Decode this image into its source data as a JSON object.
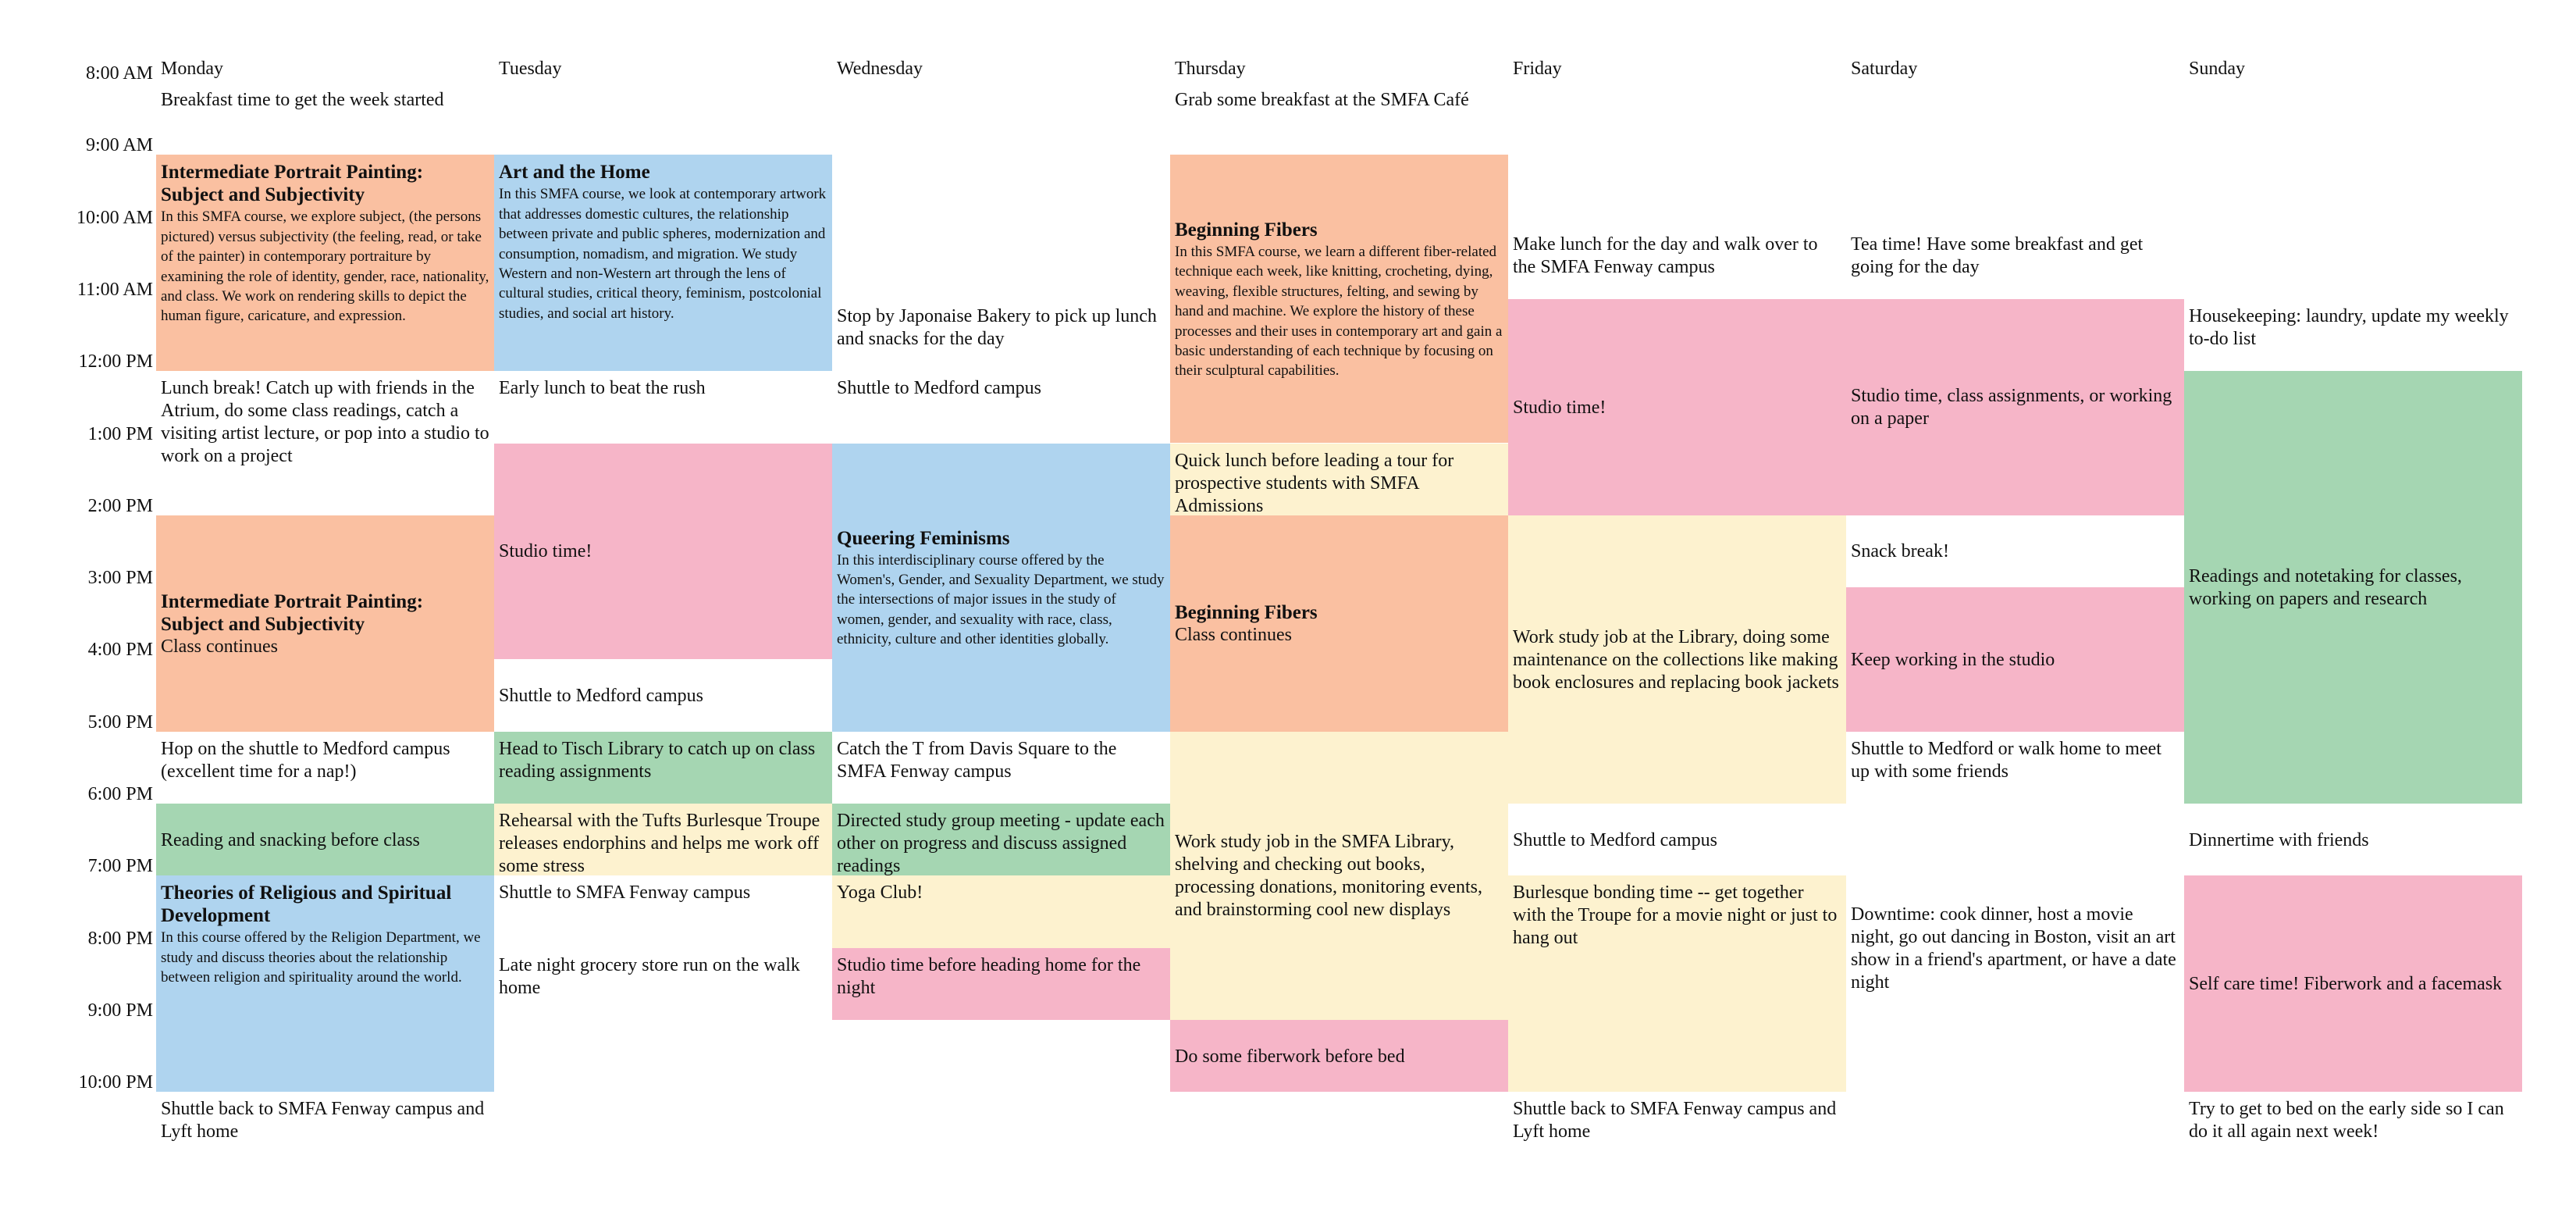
{
  "colors": {
    "orange": "#fac0a1",
    "blue": "#afd4ef",
    "pink": "#f6b5c8",
    "green": "#a5d6b2",
    "yellow": "#fdf2cf",
    "white": "#ffffff"
  },
  "days": [
    "Monday",
    "Tuesday",
    "Wednesday",
    "Thursday",
    "Friday",
    "Saturday",
    "Sunday"
  ],
  "times": [
    "8:00 AM",
    "9:00 AM",
    "10:00 AM",
    "11:00 AM",
    "12:00 PM",
    "1:00 PM",
    "2:00 PM",
    "3:00 PM",
    "4:00 PM",
    "5:00 PM",
    "6:00 PM",
    "7:00 PM",
    "8:00 PM",
    "9:00 PM",
    "10:00 PM"
  ],
  "events": [
    {
      "day": 0,
      "start": 8.0,
      "end": 9.0,
      "color": "white",
      "text": "Breakfast time to get the week started"
    },
    {
      "day": 0,
      "start": 9.0,
      "end": 12.0,
      "color": "orange",
      "title": "Intermediate Portrait Painting: Subject and Subjectivity",
      "desc": "In this SMFA course, we explore subject, (the persons pictured) versus subjectivity (the feeling, read, or take of the painter) in contemporary portraiture by examining the role of identity, gender, race, nationality, and class. We work on rendering skills to depict the human  figure, caricature, and expression."
    },
    {
      "day": 0,
      "start": 12.0,
      "end": 14.0,
      "color": "white",
      "text": "Lunch break! Catch up with friends in the Atrium, do some class readings, catch a visiting artist lecture, or pop into a studio to work on a project"
    },
    {
      "day": 0,
      "start": 14.0,
      "end": 17.0,
      "color": "orange",
      "title": "Intermediate Portrait Painting: Subject and Subjectivity",
      "text": "Class continues",
      "vcenter": true
    },
    {
      "day": 0,
      "start": 17.0,
      "end": 18.0,
      "color": "white",
      "text": "Hop on the shuttle to Medford campus (excellent time for a nap!)"
    },
    {
      "day": 0,
      "start": 18.0,
      "end": 19.0,
      "color": "green",
      "text": "Reading and snacking before class",
      "vcenter": true
    },
    {
      "day": 0,
      "start": 19.0,
      "end": 22.0,
      "color": "blue",
      "title": "Theories of Religious and Spiritual Development",
      "desc": "In this course offered by the Religion Department, we study and discuss theories about the relationship between religion and spirituality around the world."
    },
    {
      "day": 0,
      "start": 22.0,
      "end": 23.0,
      "color": "white",
      "text": "Shuttle back to SMFA Fenway campus and Lyft home"
    },
    {
      "day": 1,
      "start": 9.0,
      "end": 12.0,
      "color": "blue",
      "title": "Art and the Home",
      "desc": "In this SMFA course, we look at contemporary artwork that addresses domestic cultures, the relationship between private and public spheres, modernization and consumption,  nomadism, and migration. We study Western and non-Western art through the lens of cultural studies, critical theory, feminism, postcolonial studies, and social art history."
    },
    {
      "day": 1,
      "start": 12.0,
      "end": 13.0,
      "color": "white",
      "text": "Early lunch to beat the rush"
    },
    {
      "day": 1,
      "start": 13.0,
      "end": 16.0,
      "color": "pink",
      "text": "Studio time!",
      "vcenter": true
    },
    {
      "day": 1,
      "start": 16.0,
      "end": 17.0,
      "color": "white",
      "text": "Shuttle to Medford campus",
      "vcenter": true
    },
    {
      "day": 1,
      "start": 17.0,
      "end": 18.0,
      "color": "green",
      "text": "Head to Tisch Library to catch up on class reading assignments"
    },
    {
      "day": 1,
      "start": 18.0,
      "end": 19.0,
      "color": "yellow",
      "text": "Rehearsal with the Tufts Burlesque Troupe releases endorphins and helps me work off some stress"
    },
    {
      "day": 1,
      "start": 19.0,
      "end": 20.0,
      "color": "white",
      "text": "Shuttle  to SMFA Fenway campus"
    },
    {
      "day": 1,
      "start": 20.0,
      "end": 21.0,
      "color": "white",
      "text": "Late night grocery store run on the walk home"
    },
    {
      "day": 2,
      "start": 11.0,
      "end": 12.0,
      "color": "white",
      "text": "Stop by Japonaise Bakery to pick up lunch and snacks for the day"
    },
    {
      "day": 2,
      "start": 12.0,
      "end": 13.0,
      "color": "white",
      "text": "Shuttle to Medford campus"
    },
    {
      "day": 2,
      "start": 13.0,
      "end": 17.0,
      "color": "blue",
      "title": "Queering Feminisms",
      "desc": "In this interdisciplinary course offered by the Women's, Gender, and Sexuality Department, we study the intersections of major issues in the study of women, gender, and sexuality with race, class, ethnicity, culture and other identities globally.",
      "vcenter": true
    },
    {
      "day": 2,
      "start": 17.0,
      "end": 18.0,
      "color": "white",
      "text": "Catch the T from Davis Square to the SMFA Fenway campus"
    },
    {
      "day": 2,
      "start": 18.0,
      "end": 19.0,
      "color": "green",
      "text": "Directed study group meeting - update each other on progress and discuss assigned readings"
    },
    {
      "day": 2,
      "start": 19.0,
      "end": 20.0,
      "color": "yellow",
      "text": "Yoga Club!"
    },
    {
      "day": 2,
      "start": 20.0,
      "end": 21.0,
      "color": "pink",
      "text": "Studio time before heading home for the night"
    },
    {
      "day": 3,
      "start": 8.0,
      "end": 9.0,
      "color": "white",
      "text": "Grab some breakfast at the SMFA Café"
    },
    {
      "day": 3,
      "start": 9.0,
      "end": 13.0,
      "color": "orange",
      "title": "Beginning Fibers",
      "desc": "In this SMFA course, we learn a different fiber-related technique each week, like knitting, crocheting, dying, weaving, flexible structures, felting, and sewing by hand and machine. We explore the history of these processes and their uses in contemporary art and gain a basic understanding of each technique by focusing on their sculptural capabilities.",
      "vcenter": true
    },
    {
      "day": 3,
      "start": 13.0,
      "end": 14.0,
      "color": "yellow",
      "text": "Quick lunch before leading a tour for prospective students with SMFA Admissions"
    },
    {
      "day": 3,
      "start": 14.0,
      "end": 17.0,
      "color": "orange",
      "title": "Beginning Fibers",
      "text": "Class continues",
      "vcenter": true
    },
    {
      "day": 3,
      "start": 17.0,
      "end": 21.0,
      "color": "yellow",
      "text": "Work study job in the SMFA Library, shelving and checking out books, processing donations, monitoring events, and brainstorming cool new displays",
      "vcenter": true
    },
    {
      "day": 3,
      "start": 21.0,
      "end": 22.0,
      "color": "pink",
      "text": "Do some fiberwork before bed",
      "vcenter": true
    },
    {
      "day": 4,
      "start": 10.0,
      "end": 11.0,
      "color": "white",
      "text": "Make lunch for the day and walk over to the SMFA Fenway campus"
    },
    {
      "day": 4,
      "start": 11.0,
      "end": 14.0,
      "color": "pink",
      "text": "Studio time!",
      "vcenter": true
    },
    {
      "day": 4,
      "start": 14.0,
      "end": 18.0,
      "color": "yellow",
      "text": "Work study job at the Library, doing some maintenance on the collections like making book enclosures and replacing book jackets",
      "vcenter": true
    },
    {
      "day": 4,
      "start": 18.0,
      "end": 19.0,
      "color": "white",
      "text": "Shuttle to Medford campus",
      "vcenter": true
    },
    {
      "day": 4,
      "start": 19.0,
      "end": 22.0,
      "color": "yellow",
      "text": "Burlesque bonding time -- get together with the Troupe for a movie night or just to hang out"
    },
    {
      "day": 4,
      "start": 22.0,
      "end": 23.0,
      "color": "white",
      "text": "Shuttle back to SMFA Fenway campus and Lyft home"
    },
    {
      "day": 5,
      "start": 10.0,
      "end": 11.0,
      "color": "white",
      "text": "Tea time! Have some breakfast and get going for the day"
    },
    {
      "day": 5,
      "start": 11.0,
      "end": 14.0,
      "color": "pink",
      "text": "Studio time, class assignments, or working on a paper",
      "vcenter": true
    },
    {
      "day": 5,
      "start": 14.0,
      "end": 15.0,
      "color": "white",
      "text": "Snack break!",
      "vcenter": true
    },
    {
      "day": 5,
      "start": 15.0,
      "end": 17.0,
      "color": "pink",
      "text": "Keep working in the studio",
      "vcenter": true
    },
    {
      "day": 5,
      "start": 17.0,
      "end": 18.0,
      "color": "white",
      "text": "Shuttle to Medford or walk home to meet up with some friends"
    },
    {
      "day": 5,
      "start": 18.0,
      "end": 22.0,
      "color": "white",
      "text": "Downtime: cook dinner, host a movie night, go out dancing in Boston, visit an art show in a friend's apartment, or have a date night",
      "vcenter": true
    },
    {
      "day": 6,
      "start": 11.0,
      "end": 12.0,
      "color": "white",
      "text": "Housekeeping: laundry, update my weekly to-do list"
    },
    {
      "day": 6,
      "start": 12.0,
      "end": 18.0,
      "color": "green",
      "text": "Readings and notetaking for classes, working on papers and research",
      "vcenter": true
    },
    {
      "day": 6,
      "start": 18.0,
      "end": 19.0,
      "color": "white",
      "text": "Dinnertime with friends",
      "vcenter": true
    },
    {
      "day": 6,
      "start": 19.0,
      "end": 22.0,
      "color": "pink",
      "text": "Self care time! Fiberwork and a facemask",
      "vcenter": true
    },
    {
      "day": 6,
      "start": 22.0,
      "end": 23.0,
      "color": "white",
      "text": "Try to get to bed on the early side so I can do it all again next week!"
    }
  ]
}
